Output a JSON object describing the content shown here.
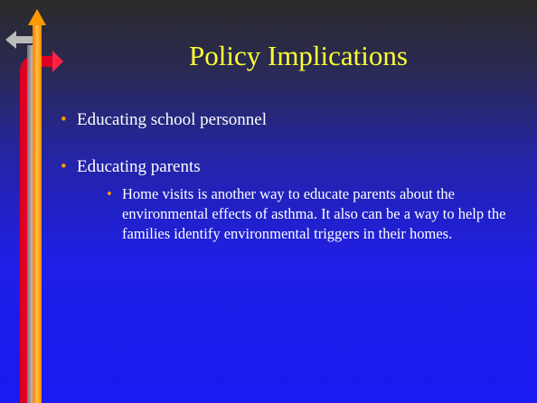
{
  "title": "Policy Implications",
  "bullets": [
    {
      "text": "Educating school personnel"
    },
    {
      "text": "Educating parents",
      "sub_bullets": [
        "Home visits is another way to educate parents about the environmental effects of asthma. It also can be a way to help the families identify environmental triggers in their homes."
      ]
    }
  ]
}
